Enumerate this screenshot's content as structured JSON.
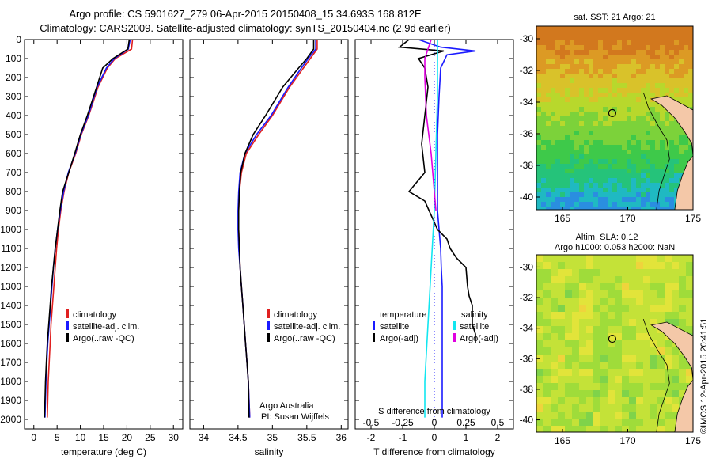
{
  "header": {
    "title_line1": "Argo profile: CS 5901627_279 06-Apr-2015 20150408_15 34.693S 168.812E",
    "title_line2": "Climatology: CARS2009. Satellite-adjusted climatology: synTS_20150404.nc (2.9d earlier)"
  },
  "colors": {
    "climatology": "#e02020",
    "satellite": "#1a1aff",
    "argo": "#000000",
    "salinity_sat": "#11e6f0",
    "salinity_argo": "#e000e0",
    "land": "#f4c8a8"
  },
  "chart_data": [
    {
      "type": "line",
      "id": "temperature_profile",
      "xlabel": "temperature (deg C)",
      "xlim": [
        -2,
        32
      ],
      "xticks": [
        0,
        5,
        10,
        15,
        20,
        25,
        30
      ],
      "ylim": [
        0,
        2050
      ],
      "yticks": [
        0,
        100,
        200,
        300,
        400,
        500,
        600,
        700,
        800,
        900,
        1000,
        1100,
        1200,
        1300,
        1400,
        1500,
        1600,
        1700,
        1800,
        1900,
        2000
      ],
      "legend": [
        "climatology",
        "satellite-adj. clim.",
        "Argo(..raw -QC)"
      ],
      "series": [
        {
          "name": "climatology",
          "color": "#e02020",
          "x": [
            21.2,
            21.0,
            17.5,
            15.8,
            13.8,
            11.8,
            10.2,
            9.0,
            7.5,
            6.5,
            5.8,
            5.3,
            4.9,
            4.6,
            4.3,
            4.0,
            3.7,
            3.5,
            3.3,
            3.1,
            2.9
          ],
          "y": [
            0,
            50,
            100,
            150,
            250,
            400,
            500,
            600,
            700,
            800,
            900,
            1000,
            1100,
            1200,
            1300,
            1400,
            1500,
            1600,
            1700,
            1800,
            1990
          ]
        },
        {
          "name": "satellite-adj. clim.",
          "color": "#1a1aff",
          "x": [
            20.7,
            20.3,
            17.3,
            15.6,
            13.6,
            11.7,
            10.1,
            8.9,
            7.4,
            6.4,
            5.7,
            5.1,
            4.6,
            4.2,
            3.9,
            3.6,
            3.3,
            3.0,
            2.8,
            2.6,
            2.4
          ],
          "y": [
            0,
            50,
            100,
            150,
            250,
            400,
            500,
            600,
            700,
            800,
            900,
            1000,
            1100,
            1200,
            1300,
            1400,
            1500,
            1600,
            1700,
            1800,
            1990
          ]
        },
        {
          "name": "Argo(..raw -QC)",
          "color": "#000000",
          "x": [
            20.5,
            20.2,
            17.0,
            14.8,
            13.5,
            11.5,
            10.0,
            8.8,
            7.5,
            6.2,
            5.6,
            5.1,
            4.6,
            4.2,
            3.8,
            3.5,
            3.2,
            2.9,
            2.7,
            2.5,
            2.3
          ],
          "y": [
            0,
            50,
            100,
            150,
            250,
            400,
            500,
            600,
            700,
            800,
            900,
            1000,
            1100,
            1200,
            1300,
            1400,
            1500,
            1600,
            1700,
            1800,
            1990
          ]
        }
      ]
    },
    {
      "type": "line",
      "id": "salinity_profile",
      "xlabel": "salinity",
      "xlim": [
        33.8,
        36.1
      ],
      "xticks": [
        34,
        34.5,
        35,
        35.5,
        36
      ],
      "ylim": [
        0,
        2050
      ],
      "legend": [
        "climatology",
        "satellite-adj. clim.",
        "Argo(..raw -QC)"
      ],
      "annotations": [
        "Argo Australia",
        "PI: Susan Wijffels"
      ],
      "series": [
        {
          "name": "climatology",
          "color": "#e02020",
          "x": [
            35.65,
            35.65,
            35.55,
            35.45,
            35.25,
            35.0,
            34.8,
            34.62,
            34.55,
            34.52,
            34.51,
            34.51,
            34.52,
            34.53,
            34.55,
            34.57,
            34.59,
            34.61,
            34.63,
            34.65,
            34.67
          ],
          "y": [
            0,
            50,
            100,
            150,
            250,
            400,
            500,
            600,
            700,
            800,
            900,
            1000,
            1100,
            1200,
            1300,
            1400,
            1500,
            1600,
            1700,
            1800,
            1990
          ]
        },
        {
          "name": "satellite-adj. clim.",
          "color": "#1a1aff",
          "x": [
            35.63,
            35.63,
            35.52,
            35.42,
            35.23,
            34.98,
            34.77,
            34.6,
            34.53,
            34.51,
            34.5,
            34.5,
            34.51,
            34.53,
            34.55,
            34.57,
            34.59,
            34.61,
            34.63,
            34.65,
            34.67
          ],
          "y": [
            0,
            50,
            100,
            150,
            250,
            400,
            500,
            600,
            700,
            800,
            900,
            1000,
            1100,
            1200,
            1300,
            1400,
            1500,
            1600,
            1700,
            1800,
            1990
          ]
        },
        {
          "name": "Argo(..raw -QC)",
          "color": "#000000",
          "x": [
            35.6,
            35.6,
            35.5,
            35.38,
            35.15,
            34.9,
            34.72,
            34.6,
            34.54,
            34.52,
            34.51,
            34.51,
            34.52,
            34.53,
            34.55,
            34.57,
            34.59,
            34.61,
            34.63,
            34.65,
            34.66
          ],
          "y": [
            0,
            50,
            100,
            150,
            250,
            400,
            500,
            600,
            700,
            800,
            900,
            1000,
            1100,
            1200,
            1300,
            1400,
            1500,
            1600,
            1700,
            1800,
            1990
          ]
        }
      ]
    },
    {
      "type": "line",
      "id": "difference_profile",
      "xlabel": "T difference from climatology",
      "xlabel2": "S difference from climatology",
      "xlim": [
        -2.5,
        2.5
      ],
      "xticks": [
        -2,
        -1,
        0,
        1,
        2
      ],
      "xticks2": [
        "-0.5",
        "-0.25",
        "0",
        "0.25",
        "0.5"
      ],
      "ylim": [
        0,
        2050
      ],
      "legend_titles": [
        "temperature",
        "salinity"
      ],
      "legend": [
        "satellite",
        "Argo(-adj)",
        "satellite",
        "Argo(-adj)"
      ],
      "series": [
        {
          "name": "temperature satellite",
          "color": "#1a1aff",
          "x": [
            -0.5,
            0.2,
            1.3,
            0.4,
            0.2,
            0.15,
            0.1,
            0.1,
            0.1,
            0.15,
            0.2,
            0.22,
            0.25,
            0.25,
            0.25,
            0.25,
            0.25,
            0.25,
            0.25,
            0.25
          ],
          "y": [
            0,
            40,
            60,
            80,
            150,
            300,
            500,
            700,
            900,
            1000,
            1100,
            1200,
            1300,
            1400,
            1500,
            1600,
            1700,
            1800,
            1900,
            1990
          ]
        },
        {
          "name": "temperature Argo(-adj)",
          "color": "#000000",
          "x": [
            -0.8,
            -1.1,
            0.3,
            -0.5,
            -0.3,
            -0.2,
            -0.3,
            -0.4,
            -0.3,
            -0.8,
            -0.3,
            0.1,
            0.4,
            0.5,
            0.7,
            1.0,
            1.05,
            1.1,
            1.2,
            1.2,
            1.3,
            1.3
          ],
          "y": [
            0,
            40,
            60,
            100,
            150,
            250,
            400,
            550,
            700,
            800,
            850,
            1000,
            1050,
            1100,
            1150,
            1200,
            1300,
            1350,
            1400,
            1500,
            1550,
            1600
          ]
        },
        {
          "name": "salinity satellite",
          "color": "#11e6f0",
          "x": [
            0.1,
            0.1,
            0.05,
            0.0,
            -0.1,
            -0.2,
            -0.3,
            -0.3
          ],
          "y": [
            0,
            300,
            600,
            900,
            1200,
            1500,
            1800,
            1990
          ]
        },
        {
          "name": "salinity Argo(-adj)",
          "color": "#e000e0",
          "x": [
            -0.1,
            -0.3,
            -0.3,
            -0.25,
            -0.1,
            0.0,
            0.05
          ],
          "y": [
            0,
            100,
            200,
            400,
            600,
            800,
            900
          ]
        }
      ]
    },
    {
      "type": "heatmap",
      "id": "sst_map",
      "title": "sat. SST: 21 Argo: 21",
      "xticks": [
        165,
        170,
        175
      ],
      "yticks": [
        -30,
        -32,
        -34,
        -36,
        -38,
        -40
      ],
      "xlim": [
        163,
        175
      ],
      "ylim": [
        -40.8,
        -29.2
      ],
      "marker": {
        "lon": 168.812,
        "lat": -34.693
      }
    },
    {
      "type": "heatmap",
      "id": "sla_map",
      "title_line1": "Altim. SLA: 0.12",
      "title_line2": "Argo h1000: 0.053 h2000: NaN",
      "xticks": [
        165,
        170,
        175
      ],
      "yticks": [
        -30,
        -32,
        -34,
        -36,
        -38,
        -40
      ],
      "xlim": [
        163,
        175
      ],
      "ylim": [
        -40.8,
        -29.2
      ],
      "marker": {
        "lon": 168.812,
        "lat": -34.693
      }
    }
  ],
  "watermark": "©IMOS 12-Apr-2015 20:41:51"
}
